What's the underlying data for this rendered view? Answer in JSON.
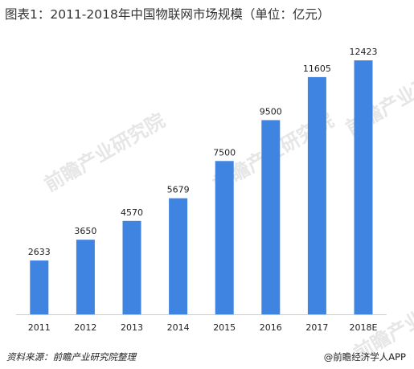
{
  "title": "图表1：2011-2018年中国物联网市场规模（单位：亿元）",
  "watermark": "前瞻产业研究院",
  "footer": {
    "source": "资料来源：前瞻产业研究院整理",
    "credit": "@前瞻经济学人APP"
  },
  "colors": {
    "bar": "#3f84e0",
    "axis": "#cccccc"
  },
  "chart_data": {
    "type": "bar",
    "title": "图表1：2011-2018年中国物联网市场规模（单位：亿元）",
    "categories": [
      "2011",
      "2012",
      "2013",
      "2014",
      "2015",
      "2016",
      "2017",
      "2018E"
    ],
    "values": [
      2633,
      3650,
      4570,
      5679,
      7500,
      9500,
      11605,
      12423
    ],
    "data_labels": [
      "2633",
      "3650",
      "4570",
      "5679",
      "7500",
      "9500",
      "11605",
      "12423"
    ],
    "xlabel": "",
    "ylabel": "",
    "ylim": [
      0,
      14000
    ],
    "grid": false,
    "legend": "none"
  }
}
